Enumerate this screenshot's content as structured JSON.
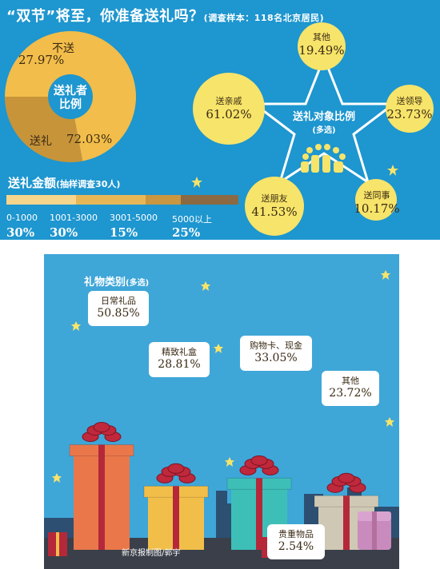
{
  "title": "“双节”将至，你准备送礼吗？",
  "title_sub": "(调查样本：118名北京居民)",
  "donut": {
    "center_line1": "送礼者",
    "center_line2": "比例"
  },
  "star": {
    "title_line1": "送礼对象比例",
    "title_line2": "(多选)"
  },
  "amount": {
    "title": "送礼金额",
    "title_sub": "(抽样调查30人)"
  },
  "gifts": {
    "title": "礼物类别",
    "title_sub": "(多选)"
  },
  "credit": "新京报制图/郭宇",
  "colors": {
    "top_bg": "#1e96cf",
    "bottom_bg": "#3fa6d8",
    "donut_give": "#f2bd4a",
    "donut_notgive": "#c7943a",
    "bubble": "#f7e46a",
    "star_fill": "#1e96cf",
    "amount_1": "#f6d58c",
    "amount_2": "#e7b757",
    "amount_3": "#c99642",
    "amount_4": "#8b6a43"
  },
  "chart_data": [
    {
      "type": "pie",
      "title": "",
      "categories": [
        "送礼",
        "不送"
      ],
      "values": [
        72.03,
        27.97
      ],
      "value_labels": [
        "72.03%",
        "27.97%"
      ]
    },
    {
      "type": "bar",
      "title": "送礼对象比例(多选)",
      "categories": [
        "其他",
        "送亲戚",
        "送领导",
        "送朋友",
        "送同事"
      ],
      "values": [
        19.49,
        61.02,
        23.73,
        41.53,
        10.17
      ],
      "value_labels": [
        "19.49%",
        "61.02%",
        "23.73%",
        "41.53%",
        "10.17%"
      ]
    },
    {
      "type": "bar",
      "title": "送礼金额(抽样调查30人)",
      "categories": [
        "0-1000",
        "1001-3000",
        "3001-5000",
        "5000以上"
      ],
      "values": [
        30,
        30,
        15,
        25
      ],
      "value_labels": [
        "30%",
        "30%",
        "15%",
        "25%"
      ]
    },
    {
      "type": "bar",
      "title": "礼物类别(多选)",
      "categories": [
        "日常礼品",
        "精致礼盒",
        "购物卡、现金",
        "其他",
        "贵重物品"
      ],
      "values": [
        50.85,
        28.81,
        33.05,
        23.72,
        2.54
      ],
      "value_labels": [
        "50.85%",
        "28.81%",
        "33.05%",
        "23.72%",
        "2.54%"
      ],
      "colors": [
        "#e9774a",
        "#f2be4a",
        "#3dbfb8",
        "#cfc8b4",
        "#9b6a92"
      ]
    }
  ]
}
